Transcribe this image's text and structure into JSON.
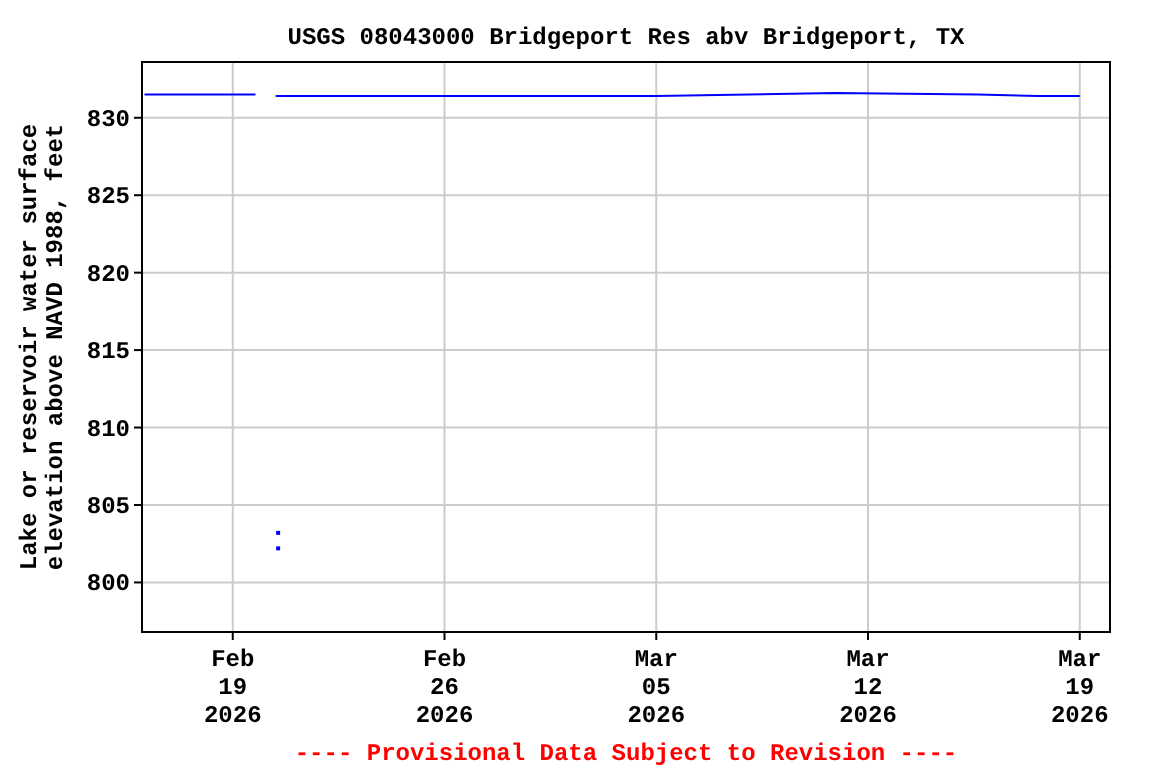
{
  "chart_data": {
    "type": "line",
    "title": "USGS 08043000 Bridgeport Res abv Bridgeport, TX",
    "ylabel": "Lake or reservoir water surface\nelevation above NAVD 1988, feet",
    "annotations": [
      "---- Provisional Data Subject to Revision ----"
    ],
    "xlim": [
      "2026-02-16T00:00",
      "2026-03-20T00:00"
    ],
    "ylim": [
      796.8,
      833.6
    ],
    "xticks": [
      {
        "value": "2026-02-19",
        "label": "Feb\n19\n2026"
      },
      {
        "value": "2026-02-26",
        "label": "Feb\n26\n2026"
      },
      {
        "value": "2026-03-05",
        "label": "Mar\n05\n2026"
      },
      {
        "value": "2026-03-12",
        "label": "Mar\n12\n2026"
      },
      {
        "value": "2026-03-19",
        "label": "Mar\n19\n2026"
      }
    ],
    "yticks": [
      800,
      805,
      810,
      815,
      820,
      825,
      830
    ],
    "grid": true,
    "series": [
      {
        "color": "#0000ff",
        "marker": "none",
        "x": [
          "2026-02-16T02:00",
          "2026-02-19T18:00",
          "2026-02-20T00:00",
          "2026-02-20T10:00",
          "2026-03-05T00:00",
          "2026-03-10T22:00",
          "2026-03-15T15:00",
          "2026-03-17T15:00",
          "2026-03-19T00:00"
        ],
        "values": [
          831.5,
          831.5,
          null,
          831.4,
          831.4,
          831.6,
          831.5,
          831.4,
          831.4
        ]
      },
      {
        "type": "scatter",
        "color": "#0000ff",
        "marker": "square",
        "x": [
          "2026-02-20T12:00",
          "2026-02-20T12:00"
        ],
        "values": [
          803.2,
          802.2
        ]
      }
    ]
  }
}
